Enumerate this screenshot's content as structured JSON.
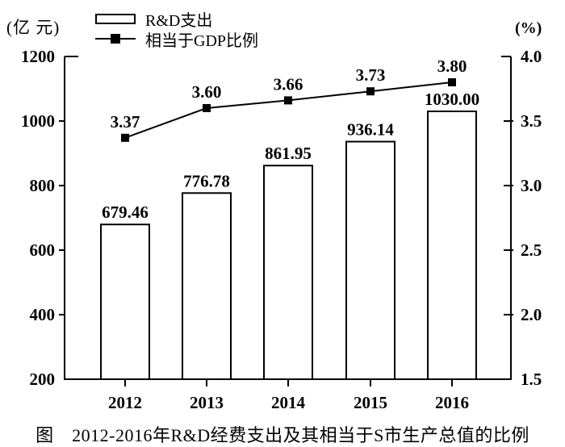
{
  "figure": {
    "left_unit": "(亿 元)",
    "right_unit": "(%)",
    "legend": [
      {
        "label": "R&D支出",
        "symbol": "bar-outline"
      },
      {
        "label": "相当于GDP比例",
        "symbol": "line-with-square-marker"
      }
    ],
    "caption": "图　2012-2016年R&D经费支出及其相当于S市生产总值的比例"
  },
  "chart_data": {
    "type": "bar+line",
    "categories": [
      "2012",
      "2013",
      "2014",
      "2015",
      "2016"
    ],
    "series": [
      {
        "name": "R&D支出",
        "type": "bar",
        "axis": "left",
        "values": [
          679.46,
          776.78,
          861.95,
          936.14,
          1030.0
        ],
        "labels": [
          "679.46",
          "776.78",
          "861.95",
          "936.14",
          "1030.00"
        ]
      },
      {
        "name": "相当于GDP比例",
        "type": "line",
        "axis": "right",
        "marker": "filled-square",
        "values": [
          3.37,
          3.6,
          3.66,
          3.73,
          3.8
        ],
        "labels": [
          "3.37",
          "3.60",
          "3.66",
          "3.73",
          "3.80"
        ]
      }
    ],
    "left_axis": {
      "min": 200,
      "max": 1200,
      "unit": "(亿 元)",
      "ticks": [
        200,
        400,
        600,
        800,
        1000,
        1200
      ],
      "tick_labels": [
        "200",
        "400",
        "600",
        "800",
        "1000",
        "1200"
      ]
    },
    "right_axis": {
      "min": 1.5,
      "max": 4.0,
      "unit": "(%)",
      "ticks": [
        1.5,
        2.0,
        2.5,
        3.0,
        3.5,
        4.0
      ],
      "tick_labels": [
        "1.5",
        "2.0",
        "2.5",
        "3.0",
        "3.5",
        "4.0"
      ]
    },
    "title": "图　2012-2016年R&D经费支出及其相当于S市生产总值的比例",
    "legend_position": "top-left",
    "grid": false,
    "colors": {
      "foreground": "#000000",
      "background": "#ffffff"
    }
  }
}
